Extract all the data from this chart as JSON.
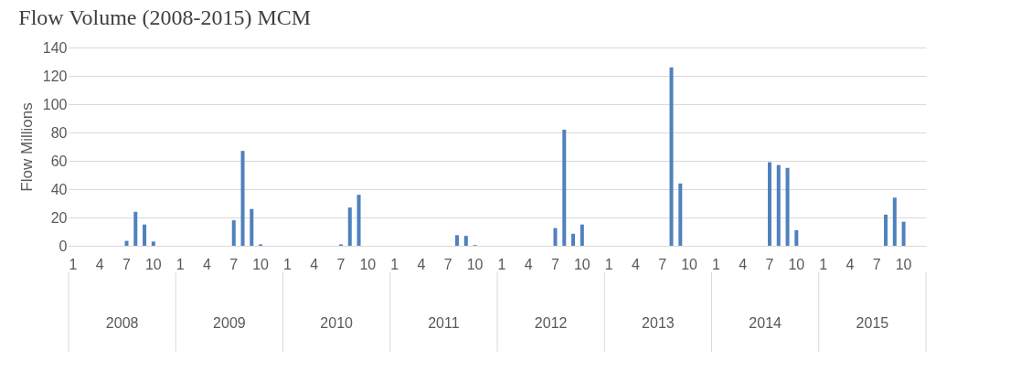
{
  "chart_data": {
    "type": "bar",
    "title": "Flow Volume (2008-2015) MCM",
    "ylabel": "Flow Millions",
    "categories": [
      "1",
      null,
      null,
      "4",
      null,
      null,
      "7",
      null,
      null,
      "10",
      null,
      null,
      "1",
      null,
      null,
      "4",
      null,
      null,
      "7",
      null,
      null,
      "10",
      null,
      null,
      "1",
      null,
      null,
      "4",
      null,
      null,
      "7",
      null,
      null,
      "10",
      null,
      null,
      "1",
      null,
      null,
      "4",
      null,
      null,
      "7",
      null,
      null,
      "10",
      null,
      null,
      "1",
      null,
      null,
      "4",
      null,
      null,
      "7",
      null,
      null,
      "10",
      null,
      null,
      "1",
      null,
      null,
      "4",
      null,
      null,
      "7",
      null,
      null,
      "10",
      null,
      null,
      "1",
      null,
      null,
      "4",
      null,
      null,
      "7",
      null,
      null,
      "10",
      null,
      null,
      "1",
      null,
      null,
      "4",
      null,
      null,
      "7",
      null,
      null,
      "10",
      null,
      null
    ],
    "values": [
      0,
      0,
      0,
      0,
      0,
      0,
      3.5,
      24,
      15,
      3,
      0,
      0,
      0,
      0,
      0,
      0,
      0,
      0,
      18,
      67,
      26,
      1,
      0,
      0,
      0,
      0,
      0,
      0,
      0,
      0,
      1,
      27,
      36,
      0,
      0,
      0,
      0,
      0,
      0,
      0,
      0,
      0,
      0,
      7.5,
      7,
      0.5,
      0,
      0,
      0,
      0,
      0,
      0,
      0,
      0,
      12.5,
      82,
      8.5,
      15,
      0,
      0,
      0,
      0,
      0,
      0,
      0,
      0,
      0,
      126,
      44,
      0,
      0,
      0,
      0,
      0,
      0,
      0,
      0,
      0,
      59,
      57,
      55,
      11,
      0,
      0,
      0,
      0,
      0,
      0,
      0,
      0,
      0,
      22,
      34,
      17,
      0,
      0
    ],
    "color": "#4f81bd",
    "ylim": [
      0,
      140
    ],
    "yticks": [
      0,
      20,
      40,
      60,
      80,
      100,
      120,
      140
    ],
    "grid": "y",
    "annotations": [
      "2008",
      "2009",
      "2010",
      "2011",
      "2012",
      "2013",
      "2014",
      "2015"
    ]
  }
}
